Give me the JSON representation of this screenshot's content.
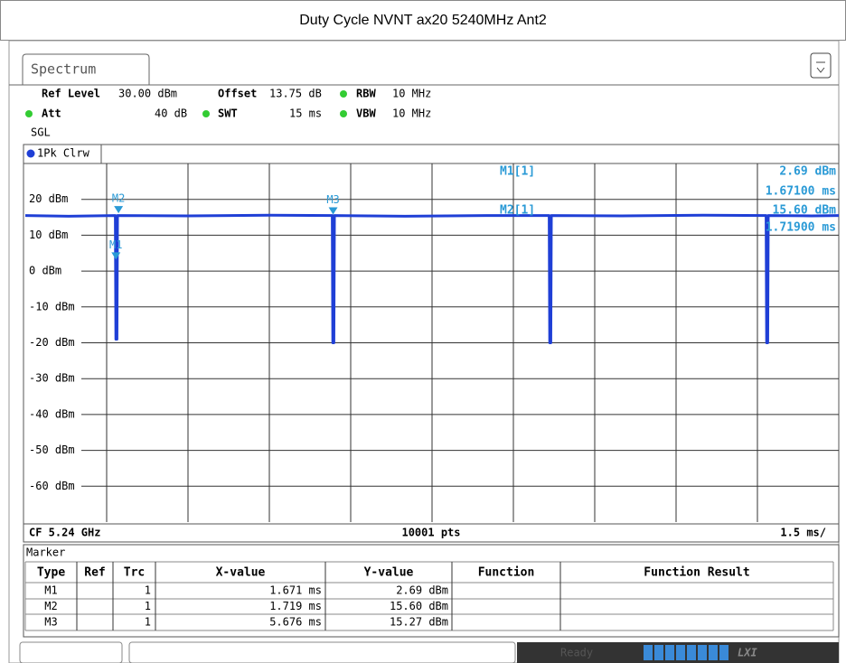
{
  "title": "Duty Cycle NVNT ax20 5240MHz Ant2",
  "tab": "Spectrum",
  "settings": {
    "ref_level_label": "Ref Level",
    "ref_level": "30.00 dBm",
    "offset_label": "Offset",
    "offset": "13.75 dB",
    "rbw_label": "RBW",
    "rbw": "10 MHz",
    "att_label": "Att",
    "att": "40 dB",
    "swt_label": "SWT",
    "swt": "15 ms",
    "vbw_label": "VBW",
    "vbw": "10 MHz",
    "mode": "SGL"
  },
  "chart_data": {
    "type": "line",
    "trace_label": "1Pk Clrw",
    "xlim": [
      0,
      15
    ],
    "ylim": [
      -70,
      30
    ],
    "yticks": [
      {
        "value": 20,
        "label": "20 dBm"
      },
      {
        "value": 10,
        "label": "10 dBm"
      },
      {
        "value": 0,
        "label": "0 dBm"
      },
      {
        "value": -10,
        "label": "-10 dBm"
      },
      {
        "value": -20,
        "label": "-20 dBm"
      },
      {
        "value": -30,
        "label": "-30 dBm"
      },
      {
        "value": -40,
        "label": "-40 dBm"
      },
      {
        "value": -50,
        "label": "-50 dBm"
      },
      {
        "value": -60,
        "label": "-60 dBm"
      }
    ],
    "color": "#1f3fd6",
    "x": [
      0,
      0.8,
      1.66,
      1.67,
      1.69,
      1.7,
      3.0,
      4.5,
      5.66,
      5.67,
      5.69,
      5.7,
      7.0,
      8.5,
      9.66,
      9.67,
      9.69,
      9.7,
      11.0,
      12.5,
      13.66,
      13.67,
      13.69,
      13.7,
      14.5,
      15
    ],
    "values": [
      15.5,
      15.3,
      15.5,
      -19,
      -19,
      15.5,
      15.4,
      15.6,
      15.5,
      -20,
      -20,
      15.5,
      15.3,
      15.5,
      15.5,
      -20,
      -20,
      15.5,
      15.4,
      15.6,
      15.5,
      -20,
      -20,
      15.5,
      15.4,
      15.5
    ],
    "markers": [
      {
        "name": "M1",
        "x": 1.671,
        "y": 2.69
      },
      {
        "name": "M2",
        "x": 1.719,
        "y": 15.6
      },
      {
        "name": "M3",
        "x": 5.676,
        "y": 15.27
      }
    ],
    "marker_color": "#2a9ad6",
    "readout": [
      "M1[1]",
      "2.69 dBm",
      "1.67100 ms",
      "M2[1]",
      "15.60 dBm",
      "1.71900 ms"
    ],
    "footer": {
      "cf": "CF 5.24 GHz",
      "points": "10001 pts",
      "span": "1.5 ms/"
    }
  },
  "marker_table": {
    "title": "Marker",
    "columns": [
      "Type",
      "Ref",
      "Trc",
      "X-value",
      "Y-value",
      "Function",
      "Function Result"
    ],
    "rows": [
      {
        "type": "M1",
        "trc": "1",
        "x": "1.671 ms",
        "y": "2.69 dBm"
      },
      {
        "type": "M2",
        "trc": "1",
        "x": "1.719 ms",
        "y": "15.60 dBm"
      },
      {
        "type": "M3",
        "trc": "1",
        "x": "5.676 ms",
        "y": "15.27 dBm"
      }
    ]
  },
  "status": {
    "state": "Ready",
    "logo": "LXI"
  }
}
